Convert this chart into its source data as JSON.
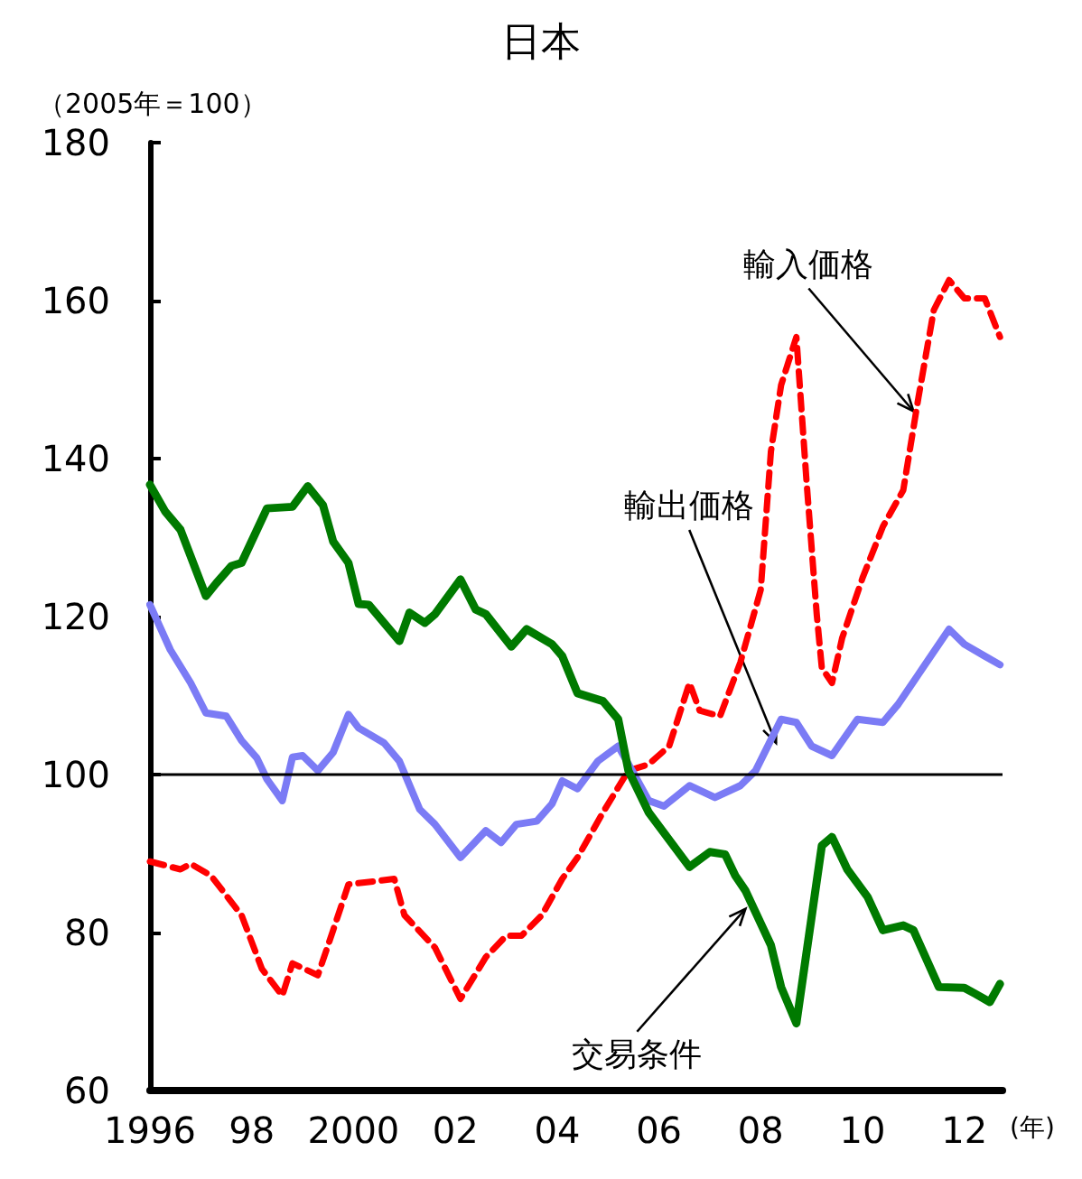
{
  "chart_data": {
    "type": "line",
    "title": "日本",
    "ylabel": "（2005年＝100）",
    "xlabel": "(年)",
    "xlim": [
      1996,
      2012.75
    ],
    "ylim": [
      60,
      180
    ],
    "xticks": [
      {
        "value": 1996,
        "label": "1996"
      },
      {
        "value": 1998,
        "label": "98"
      },
      {
        "value": 2000,
        "label": "2000"
      },
      {
        "value": 2002,
        "label": "02"
      },
      {
        "value": 2004,
        "label": "04"
      },
      {
        "value": 2006,
        "label": "06"
      },
      {
        "value": 2008,
        "label": "08"
      },
      {
        "value": 2010,
        "label": "10"
      },
      {
        "value": 2012,
        "label": "12"
      }
    ],
    "yticks": [
      60,
      80,
      100,
      120,
      140,
      160,
      180
    ],
    "grid": false,
    "marker": "none",
    "ref_lines": [
      {
        "axis": "y",
        "value": 100,
        "color": "#000000"
      }
    ],
    "annotations": [
      {
        "text": "輸入価格",
        "x": 2011.0,
        "y": 146
      },
      {
        "text": "輸出価格",
        "x": 2008.3,
        "y": 104
      },
      {
        "text": "交易条件",
        "x": 2007.7,
        "y": 83
      }
    ],
    "series": [
      {
        "color": "#ff0000",
        "line_style": "dashed",
        "x": [
          1996.0,
          1996.6,
          1996.8,
          1997.2,
          1997.8,
          1998.2,
          1998.6,
          1998.8,
          1999.3,
          1999.6,
          1999.9,
          2000.3,
          2000.8,
          2001.0,
          2001.6,
          2002.1,
          2002.6,
          2003.0,
          2003.3,
          2003.7,
          2004.1,
          2004.4,
          2004.9,
          2005.4,
          2005.8,
          2006.2,
          2006.6,
          2006.8,
          2007.2,
          2007.6,
          2008.0,
          2008.2,
          2008.4,
          2008.7,
          2008.9,
          2009.1,
          2009.2,
          2009.4,
          2009.6,
          2010.0,
          2010.4,
          2010.8,
          2011.1,
          2011.4,
          2011.7,
          2012.0,
          2012.4,
          2012.7
        ],
        "values": [
          89.0,
          88.0,
          88.7,
          87.2,
          82.2,
          75.4,
          72.0,
          76.1,
          74.6,
          80.3,
          86.1,
          86.4,
          86.8,
          82.2,
          78.1,
          71.6,
          76.9,
          79.6,
          79.6,
          82.2,
          86.8,
          89.5,
          95.2,
          100.5,
          101.3,
          103.6,
          111.6,
          108.1,
          107.4,
          114.2,
          123.4,
          140.9,
          149.3,
          155.4,
          137.1,
          120.3,
          113.5,
          111.6,
          117.3,
          124.9,
          131.4,
          136.0,
          147.8,
          158.8,
          162.6,
          160.3,
          160.3,
          155.4
        ]
      },
      {
        "color": "#7b7bf5",
        "line_style": "solid",
        "x": [
          1996.0,
          1996.4,
          1996.8,
          1997.1,
          1997.5,
          1997.8,
          1998.1,
          1998.3,
          1998.6,
          1998.8,
          1999.0,
          1999.3,
          1999.6,
          1999.9,
          2000.1,
          2000.6,
          2000.9,
          2001.3,
          2001.6,
          2002.1,
          2002.6,
          2002.9,
          2003.2,
          2003.6,
          2003.9,
          2004.1,
          2004.4,
          2004.8,
          2005.2,
          2005.5,
          2005.8,
          2006.1,
          2006.6,
          2007.1,
          2007.6,
          2007.9,
          2008.4,
          2008.7,
          2009.0,
          2009.4,
          2009.9,
          2010.4,
          2010.7,
          2011.1,
          2011.7,
          2012.0,
          2012.4,
          2012.7
        ],
        "values": [
          121.5,
          115.8,
          111.6,
          107.8,
          107.4,
          104.3,
          102.1,
          99.4,
          96.7,
          102.2,
          102.4,
          100.5,
          102.8,
          107.6,
          105.9,
          104.0,
          101.7,
          95.6,
          93.7,
          89.5,
          92.9,
          91.4,
          93.7,
          94.1,
          96.3,
          99.2,
          98.2,
          101.7,
          103.6,
          100.2,
          96.7,
          96.0,
          98.6,
          97.1,
          98.6,
          100.5,
          107.0,
          106.6,
          103.6,
          102.4,
          107.0,
          106.6,
          108.9,
          112.7,
          118.4,
          116.5,
          115.0,
          113.9
        ]
      },
      {
        "color": "#007a00",
        "line_style": "solid",
        "x": [
          1996.0,
          1996.3,
          1996.6,
          1997.1,
          1997.3,
          1997.6,
          1997.8,
          1998.3,
          1998.8,
          1999.1,
          1999.4,
          1999.6,
          1999.9,
          2000.1,
          2000.3,
          2000.9,
          2001.1,
          2001.4,
          2001.6,
          2002.1,
          2002.4,
          2002.6,
          2003.1,
          2003.4,
          2003.9,
          2004.1,
          2004.4,
          2004.9,
          2005.2,
          2005.4,
          2005.8,
          2006.6,
          2007.0,
          2007.3,
          2007.5,
          2007.7,
          2008.2,
          2008.4,
          2008.7,
          2009.2,
          2009.4,
          2009.7,
          2010.1,
          2010.4,
          2010.8,
          2011.0,
          2011.5,
          2012.0,
          2012.2,
          2012.5,
          2012.7
        ],
        "values": [
          136.7,
          133.3,
          131.0,
          122.6,
          124.2,
          126.4,
          126.8,
          133.7,
          133.9,
          136.5,
          134.1,
          129.5,
          126.8,
          121.6,
          121.5,
          116.9,
          120.5,
          119.2,
          120.3,
          124.7,
          120.9,
          120.3,
          116.2,
          118.4,
          116.5,
          115.0,
          110.3,
          109.3,
          107.0,
          100.5,
          95.2,
          88.3,
          90.2,
          89.9,
          87.2,
          85.3,
          78.4,
          73.1,
          68.5,
          91.0,
          92.1,
          88.0,
          84.5,
          80.3,
          80.9,
          80.3,
          73.1,
          73.0,
          72.3,
          71.2,
          73.5
        ]
      }
    ]
  }
}
